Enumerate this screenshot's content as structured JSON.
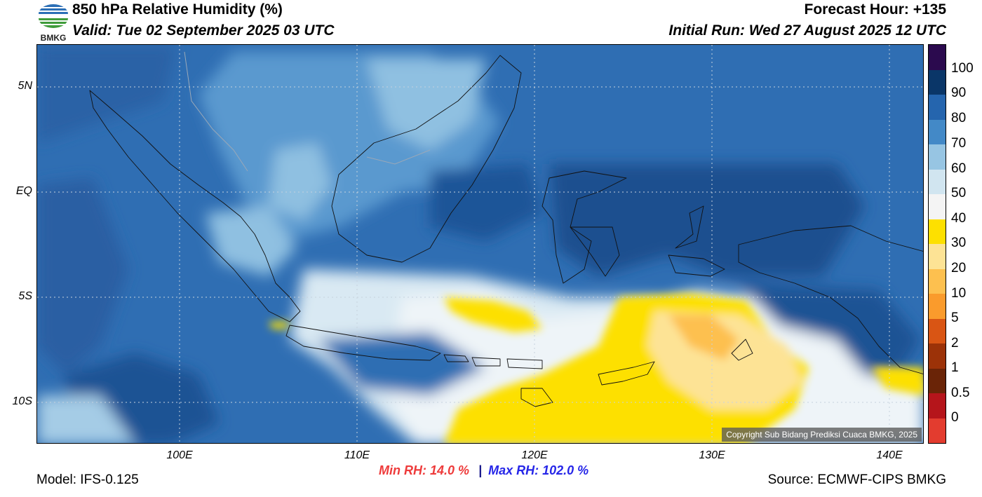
{
  "header": {
    "title": "850 hPa Relative Humidity (%)",
    "valid": "Valid: Tue 02 September 2025 03 UTC",
    "forecast_hour": "Forecast Hour: +135",
    "initial_run": "Initial Run: Wed 27 August 2025 12 UTC"
  },
  "logo": {
    "text": "BMKG",
    "icon": "bmkg-logo-icon"
  },
  "map": {
    "lat_ticks": [
      "5N",
      "EQ",
      "5S",
      "10S"
    ],
    "lon_ticks": [
      "100E",
      "110E",
      "120E",
      "130E",
      "140E"
    ],
    "copyright": "Copyright Sub Bidang Prediksi Cuaca BMKG, 2025",
    "extent": {
      "lon": [
        92,
        142
      ],
      "lat": [
        -12,
        7
      ]
    }
  },
  "colorbar": {
    "labels": [
      "100",
      "90",
      "80",
      "70",
      "60",
      "50",
      "40",
      "30",
      "20",
      "10",
      "5",
      "2",
      "1",
      "0.5",
      "0"
    ],
    "colors": [
      "#2b0a4e",
      "#0a3668",
      "#2565ae",
      "#4389c7",
      "#97c5e3",
      "#d1e5f0",
      "#f4f4f4",
      "#fde000",
      "#fde395",
      "#fdc04f",
      "#fa9b2c",
      "#d95514",
      "#9c3208",
      "#6a2407",
      "#b5151b",
      "#e33c2f"
    ]
  },
  "stats": {
    "min": "Min RH:  14.0 %",
    "separator": "|",
    "max": "Max RH: 102.0 %"
  },
  "footer": {
    "model": "Model: IFS-0.125",
    "source": "Source: ECMWF-CIPS BMKG"
  }
}
